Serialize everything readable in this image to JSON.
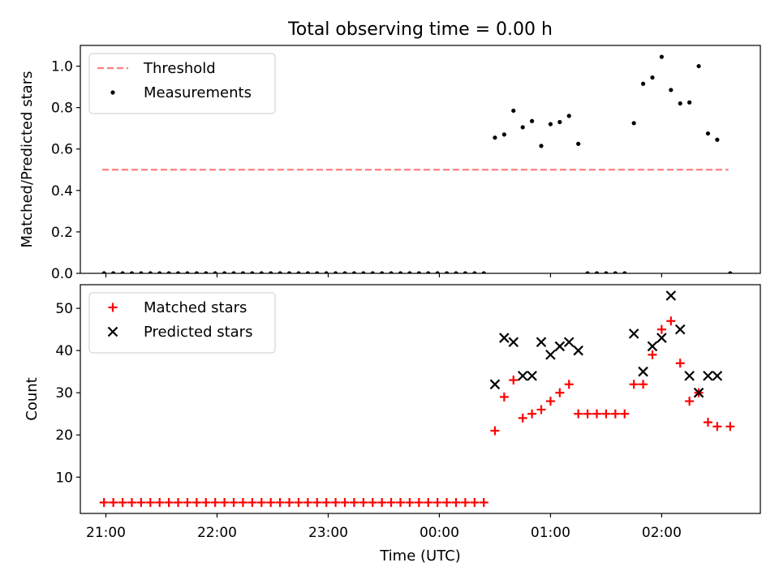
{
  "title": "Total observing time = 0.00 h",
  "x_axis": {
    "label": "Time (UTC)",
    "ticks": [
      {
        "t": 0,
        "label": "21:00"
      },
      {
        "t": 60,
        "label": "22:00"
      },
      {
        "t": 120,
        "label": "23:00"
      },
      {
        "t": 180,
        "label": "00:00"
      },
      {
        "t": 240,
        "label": "01:00"
      },
      {
        "t": 300,
        "label": "02:00"
      }
    ]
  },
  "chart_data": [
    {
      "type": "scatter",
      "ylabel": "Matched/Predicted stars",
      "ylim": [
        0,
        1.1
      ],
      "yticks": [
        0.0,
        0.2,
        0.4,
        0.6,
        0.8,
        1.0
      ],
      "ytick_labels": [
        "0.0",
        "0.2",
        "0.4",
        "0.6",
        "0.8",
        "1.0"
      ],
      "legend_position": "top-left",
      "threshold": {
        "name": "Threshold",
        "value": 0.5,
        "x_range": [
          -2,
          336
        ],
        "color": "#ff7f7f",
        "style": "dashed"
      },
      "series": [
        {
          "name": "Measurements",
          "marker": "dot",
          "color": "#000000",
          "points": [
            [
              -1,
              0
            ],
            [
              4,
              0
            ],
            [
              9,
              0
            ],
            [
              14,
              0
            ],
            [
              19,
              0
            ],
            [
              24,
              0
            ],
            [
              29,
              0
            ],
            [
              34,
              0
            ],
            [
              39,
              0
            ],
            [
              44,
              0
            ],
            [
              49,
              0
            ],
            [
              54,
              0
            ],
            [
              59,
              0
            ],
            [
              64,
              0
            ],
            [
              69,
              0
            ],
            [
              74,
              0
            ],
            [
              79,
              0
            ],
            [
              84,
              0
            ],
            [
              89,
              0
            ],
            [
              94,
              0
            ],
            [
              99,
              0
            ],
            [
              104,
              0
            ],
            [
              109,
              0
            ],
            [
              114,
              0
            ],
            [
              119,
              0
            ],
            [
              124,
              0
            ],
            [
              129,
              0
            ],
            [
              134,
              0
            ],
            [
              139,
              0
            ],
            [
              144,
              0
            ],
            [
              149,
              0
            ],
            [
              154,
              0
            ],
            [
              159,
              0
            ],
            [
              164,
              0
            ],
            [
              169,
              0
            ],
            [
              174,
              0
            ],
            [
              179,
              0
            ],
            [
              184,
              0
            ],
            [
              189,
              0
            ],
            [
              194,
              0
            ],
            [
              199,
              0
            ],
            [
              204,
              0
            ],
            [
              210,
              0.655
            ],
            [
              215,
              0.67
            ],
            [
              220,
              0.785
            ],
            [
              225,
              0.705
            ],
            [
              230,
              0.735
            ],
            [
              235,
              0.615
            ],
            [
              240,
              0.72
            ],
            [
              245,
              0.73
            ],
            [
              250,
              0.76
            ],
            [
              255,
              0.625
            ],
            [
              260,
              0
            ],
            [
              265,
              0
            ],
            [
              270,
              0
            ],
            [
              275,
              0
            ],
            [
              280,
              0
            ],
            [
              285,
              0.725
            ],
            [
              290,
              0.915
            ],
            [
              295,
              0.945
            ],
            [
              300,
              1.045
            ],
            [
              305,
              0.885
            ],
            [
              310,
              0.82
            ],
            [
              315,
              0.825
            ],
            [
              320,
              1.0
            ],
            [
              325,
              0.675
            ],
            [
              330,
              0.645
            ],
            [
              337,
              0
            ]
          ]
        }
      ]
    },
    {
      "type": "scatter",
      "ylabel": "Count",
      "ylim": [
        1.4,
        55.6
      ],
      "yticks": [
        10,
        20,
        30,
        40,
        50
      ],
      "ytick_labels": [
        "10",
        "20",
        "30",
        "40",
        "50"
      ],
      "legend_position": "top-left",
      "series": [
        {
          "name": "Matched stars",
          "marker": "plus",
          "color": "#ff0000",
          "points": [
            [
              -1,
              4
            ],
            [
              4,
              4
            ],
            [
              9,
              4
            ],
            [
              14,
              4
            ],
            [
              19,
              4
            ],
            [
              24,
              4
            ],
            [
              29,
              4
            ],
            [
              34,
              4
            ],
            [
              39,
              4
            ],
            [
              44,
              4
            ],
            [
              49,
              4
            ],
            [
              54,
              4
            ],
            [
              59,
              4
            ],
            [
              64,
              4
            ],
            [
              69,
              4
            ],
            [
              74,
              4
            ],
            [
              79,
              4
            ],
            [
              84,
              4
            ],
            [
              89,
              4
            ],
            [
              94,
              4
            ],
            [
              99,
              4
            ],
            [
              104,
              4
            ],
            [
              109,
              4
            ],
            [
              114,
              4
            ],
            [
              119,
              4
            ],
            [
              124,
              4
            ],
            [
              129,
              4
            ],
            [
              134,
              4
            ],
            [
              139,
              4
            ],
            [
              144,
              4
            ],
            [
              149,
              4
            ],
            [
              154,
              4
            ],
            [
              159,
              4
            ],
            [
              164,
              4
            ],
            [
              169,
              4
            ],
            [
              174,
              4
            ],
            [
              179,
              4
            ],
            [
              184,
              4
            ],
            [
              189,
              4
            ],
            [
              194,
              4
            ],
            [
              199,
              4
            ],
            [
              204,
              4
            ],
            [
              210,
              21
            ],
            [
              215,
              29
            ],
            [
              220,
              33
            ],
            [
              225,
              24
            ],
            [
              230,
              25
            ],
            [
              235,
              26
            ],
            [
              240,
              28
            ],
            [
              245,
              30
            ],
            [
              250,
              32
            ],
            [
              255,
              25
            ],
            [
              260,
              25
            ],
            [
              265,
              25
            ],
            [
              270,
              25
            ],
            [
              275,
              25
            ],
            [
              280,
              25
            ],
            [
              285,
              32
            ],
            [
              290,
              32
            ],
            [
              295,
              39
            ],
            [
              300,
              45
            ],
            [
              305,
              47
            ],
            [
              310,
              37
            ],
            [
              315,
              28
            ],
            [
              320,
              30
            ],
            [
              325,
              23
            ],
            [
              330,
              22
            ],
            [
              337,
              22
            ]
          ]
        },
        {
          "name": "Predicted stars",
          "marker": "x",
          "color": "#000000",
          "points": [
            [
              210,
              32
            ],
            [
              215,
              43
            ],
            [
              220,
              42
            ],
            [
              225,
              34
            ],
            [
              230,
              34
            ],
            [
              235,
              42
            ],
            [
              240,
              39
            ],
            [
              245,
              41
            ],
            [
              250,
              42
            ],
            [
              255,
              40
            ],
            [
              285,
              44
            ],
            [
              290,
              35
            ],
            [
              295,
              41
            ],
            [
              300,
              43
            ],
            [
              305,
              53
            ],
            [
              310,
              45
            ],
            [
              315,
              34
            ],
            [
              320,
              30
            ],
            [
              325,
              34
            ],
            [
              330,
              34
            ]
          ]
        }
      ]
    }
  ]
}
